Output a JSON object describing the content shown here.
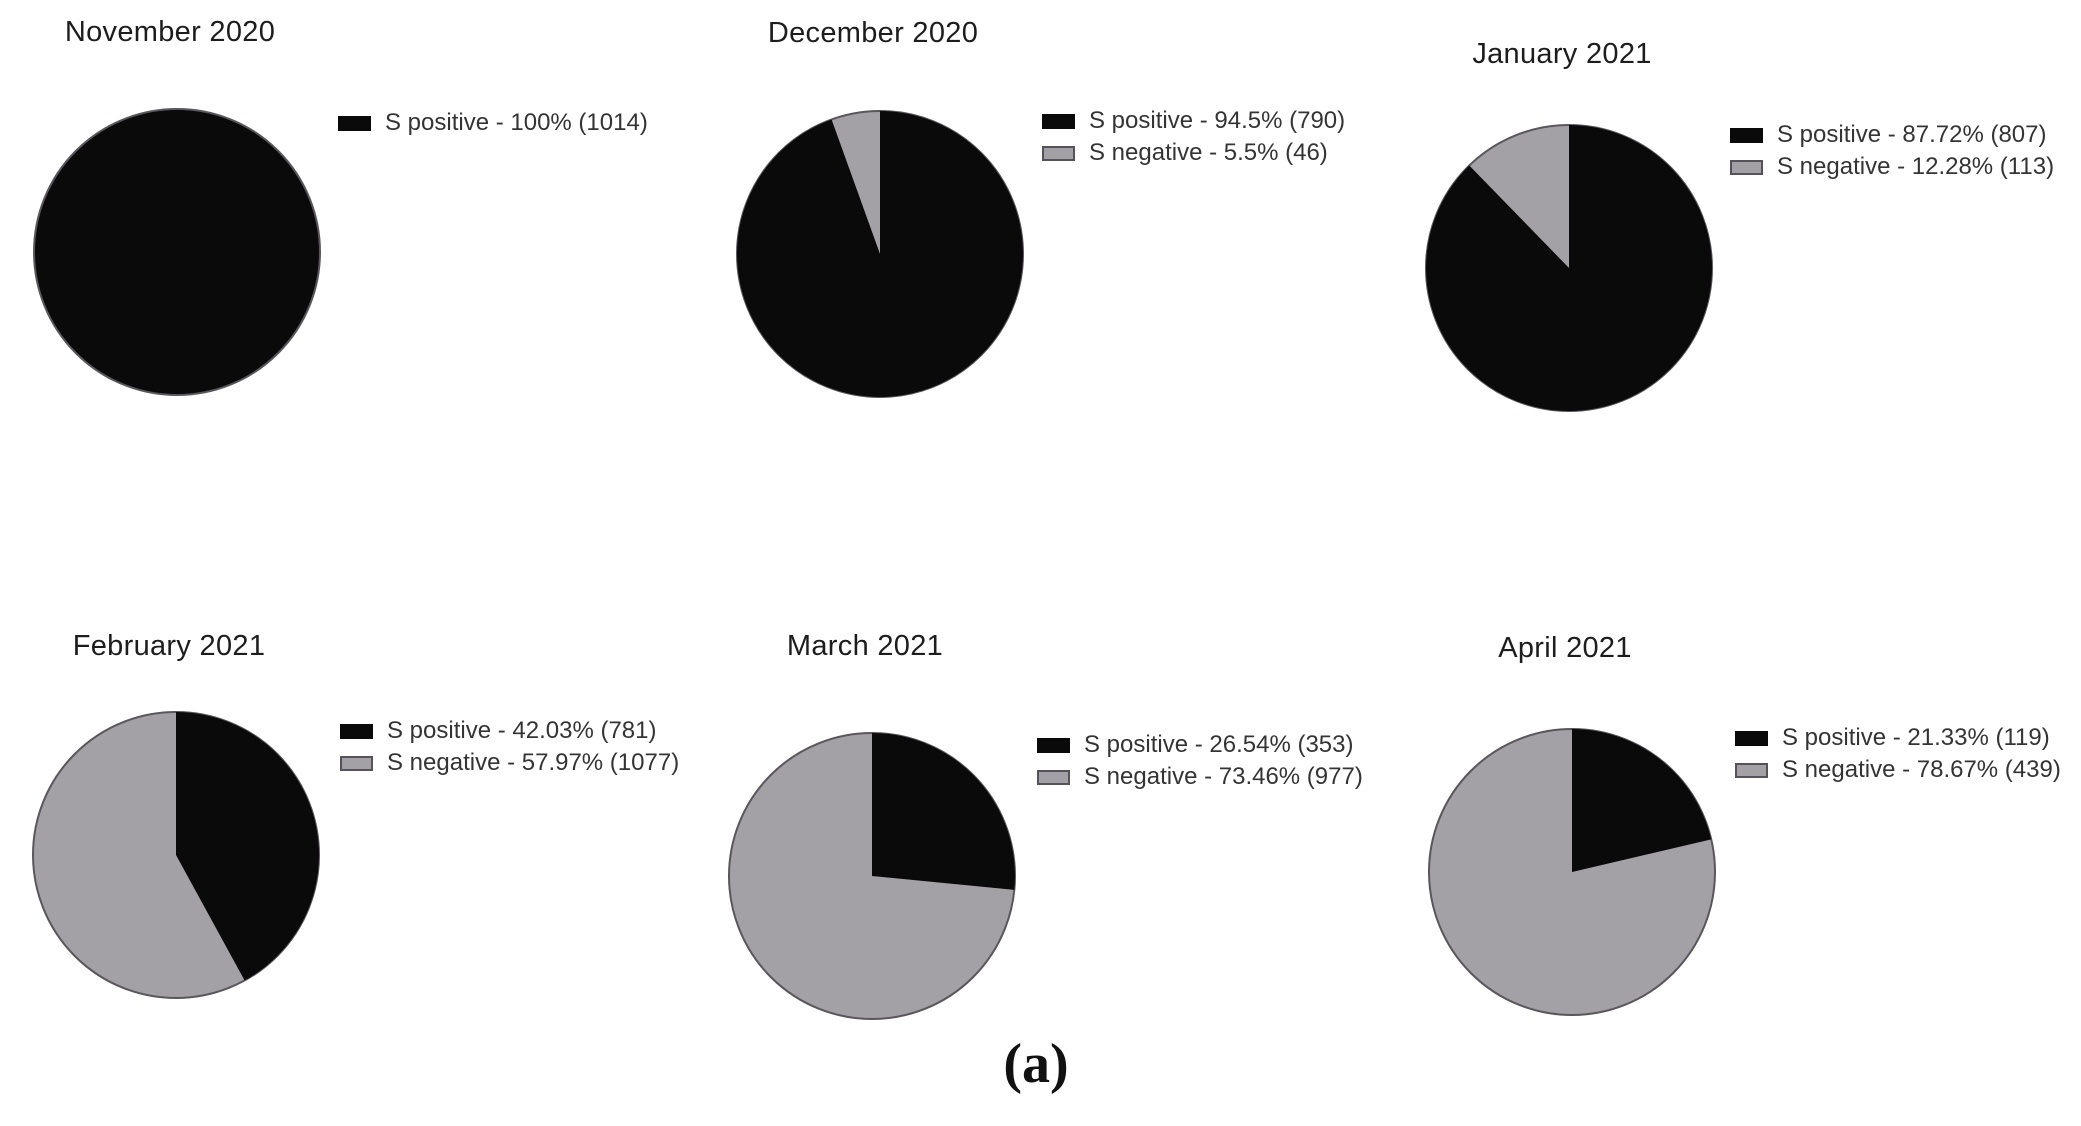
{
  "figure_label": "(a)",
  "colors": {
    "positive": "#0a0a0a",
    "negative": "#a3a1a6",
    "pie_stroke": "#5a575c",
    "swatch_negative_border": "#55525a",
    "title_text": "#1d1d1d",
    "legend_text": "#343434"
  },
  "chart_data": [
    {
      "type": "pie",
      "title": "November 2020",
      "legend_position": "right",
      "slices": [
        {
          "label": "S positive",
          "percent": 100,
          "count": 1014,
          "legend": "S positive - 100% (1014)",
          "role": "positive"
        }
      ]
    },
    {
      "type": "pie",
      "title": "December 2020",
      "legend_position": "right",
      "slices": [
        {
          "label": "S positive",
          "percent": 94.5,
          "count": 790,
          "legend": "S positive - 94.5% (790)",
          "role": "positive"
        },
        {
          "label": "S negative",
          "percent": 5.5,
          "count": 46,
          "legend": "S negative - 5.5% (46)",
          "role": "negative"
        }
      ]
    },
    {
      "type": "pie",
      "title": "January 2021",
      "legend_position": "right",
      "slices": [
        {
          "label": "S positive",
          "percent": 87.72,
          "count": 807,
          "legend": "S positive - 87.72% (807)",
          "role": "positive"
        },
        {
          "label": "S negative",
          "percent": 12.28,
          "count": 113,
          "legend": "S negative - 12.28% (113)",
          "role": "negative"
        }
      ]
    },
    {
      "type": "pie",
      "title": "February 2021",
      "legend_position": "right",
      "slices": [
        {
          "label": "S positive",
          "percent": 42.03,
          "count": 781,
          "legend": "S positive - 42.03% (781)",
          "role": "positive"
        },
        {
          "label": "S negative",
          "percent": 57.97,
          "count": 1077,
          "legend": "S negative - 57.97% (1077)",
          "role": "negative"
        }
      ]
    },
    {
      "type": "pie",
      "title": "March 2021",
      "legend_position": "right",
      "slices": [
        {
          "label": "S positive",
          "percent": 26.54,
          "count": 353,
          "legend": "S positive - 26.54% (353)",
          "role": "positive"
        },
        {
          "label": "S negative",
          "percent": 73.46,
          "count": 977,
          "legend": "S negative - 73.46% (977)",
          "role": "negative"
        }
      ]
    },
    {
      "type": "pie",
      "title": "April 2021",
      "legend_position": "right",
      "slices": [
        {
          "label": "S positive",
          "percent": 21.33,
          "count": 119,
          "legend": "S positive - 21.33% (119)",
          "role": "positive"
        },
        {
          "label": "S negative",
          "percent": 78.67,
          "count": 439,
          "legend": "S negative - 78.67% (439)",
          "role": "negative"
        }
      ]
    }
  ]
}
